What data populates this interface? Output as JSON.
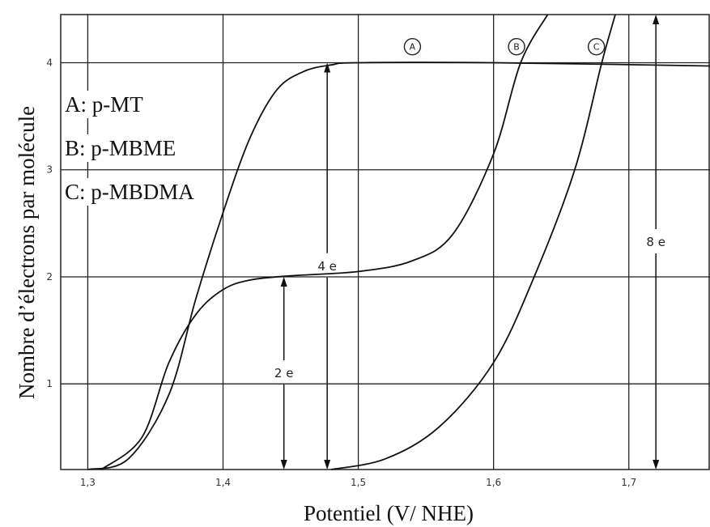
{
  "chart_data": {
    "type": "line",
    "xlabel": "Potentiel (V/ NHE)",
    "ylabel": "Nombre d’électrons par molécule",
    "xlim": [
      1.28,
      1.76
    ],
    "ylim": [
      0.2,
      4.45
    ],
    "xticks": [
      "1,3",
      "1,4",
      "1,5",
      "1,6",
      "1,7"
    ],
    "yticks": [
      "1",
      "2",
      "3",
      "4"
    ],
    "legend": [
      {
        "key": "A",
        "text": "A: p-MT"
      },
      {
        "key": "B",
        "text": "B: p-MBME"
      },
      {
        "key": "C",
        "text": "C: p-MBDMA"
      }
    ],
    "series": [
      {
        "name": "A",
        "points": [
          [
            1.3,
            0.2
          ],
          [
            1.33,
            0.3
          ],
          [
            1.36,
            0.9
          ],
          [
            1.38,
            1.8
          ],
          [
            1.4,
            2.6
          ],
          [
            1.42,
            3.3
          ],
          [
            1.44,
            3.75
          ],
          [
            1.46,
            3.92
          ],
          [
            1.48,
            3.98
          ],
          [
            1.5,
            4.0
          ],
          [
            1.6,
            4.0
          ],
          [
            1.76,
            3.97
          ]
        ]
      },
      {
        "name": "B",
        "points": [
          [
            1.31,
            0.2
          ],
          [
            1.34,
            0.5
          ],
          [
            1.36,
            1.2
          ],
          [
            1.38,
            1.65
          ],
          [
            1.4,
            1.88
          ],
          [
            1.42,
            1.97
          ],
          [
            1.45,
            2.01
          ],
          [
            1.5,
            2.05
          ],
          [
            1.54,
            2.15
          ],
          [
            1.57,
            2.4
          ],
          [
            1.6,
            3.15
          ],
          [
            1.62,
            4.0
          ],
          [
            1.64,
            4.45
          ]
        ]
      },
      {
        "name": "C",
        "points": [
          [
            1.48,
            0.2
          ],
          [
            1.52,
            0.3
          ],
          [
            1.56,
            0.6
          ],
          [
            1.6,
            1.2
          ],
          [
            1.63,
            2.0
          ],
          [
            1.66,
            3.0
          ],
          [
            1.68,
            4.0
          ],
          [
            1.69,
            4.45
          ]
        ]
      }
    ],
    "curve_markers": [
      {
        "text": "A",
        "x": 1.54,
        "y": 4.15
      },
      {
        "text": "B",
        "x": 1.617,
        "y": 4.15
      },
      {
        "text": "C",
        "x": 1.676,
        "y": 4.15
      }
    ],
    "annotations": [
      {
        "text": "2 e",
        "x": 1.445,
        "y_from": 0.2,
        "y_to": 2.0
      },
      {
        "text": "4 e",
        "x": 1.477,
        "y_from": 0.2,
        "y_to": 4.0
      },
      {
        "text": "8 e",
        "x": 1.72,
        "y_from": 0.2,
        "y_to": 4.45
      }
    ]
  }
}
